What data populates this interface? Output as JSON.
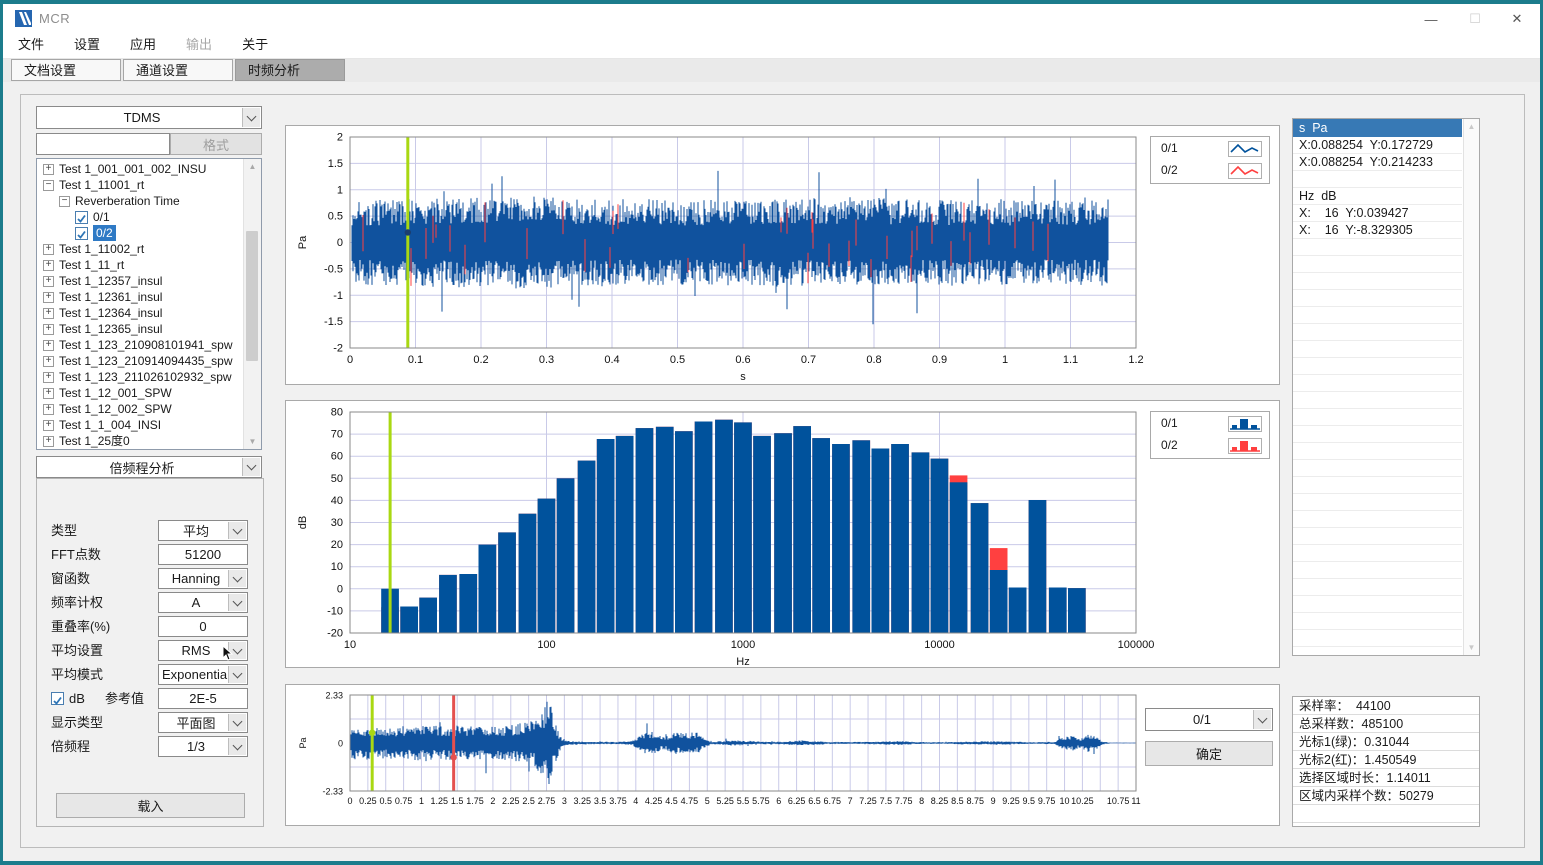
{
  "window": {
    "title": "MCR"
  },
  "menu": [
    {
      "label": "文件",
      "enabled": true
    },
    {
      "label": "设置",
      "enabled": true
    },
    {
      "label": "应用",
      "enabled": true
    },
    {
      "label": "输出",
      "enabled": false
    },
    {
      "label": "关于",
      "enabled": true
    }
  ],
  "tabs": [
    {
      "label": "文档设置",
      "active": false
    },
    {
      "label": "通道设置",
      "active": false
    },
    {
      "label": "时频分析",
      "active": true
    }
  ],
  "left": {
    "format_select": "TDMS",
    "search_value": "",
    "format_button": "格式",
    "tree": [
      {
        "label": "Test 1_001_001_002_INSU",
        "level": 0,
        "exp": "+"
      },
      {
        "label": "Test 1_11001_rt",
        "level": 0,
        "exp": "-"
      },
      {
        "label": "Reverberation Time",
        "level": 1,
        "exp": "-"
      },
      {
        "label": "0/1",
        "level": 2,
        "check": true
      },
      {
        "label": "0/2",
        "level": 2,
        "check": true,
        "selected": true
      },
      {
        "label": "Test 1_11002_rt",
        "level": 0,
        "exp": "+"
      },
      {
        "label": "Test 1_11_rt",
        "level": 0,
        "exp": "+"
      },
      {
        "label": "Test 1_12357_insul",
        "level": 0,
        "exp": "+"
      },
      {
        "label": "Test 1_12361_insul",
        "level": 0,
        "exp": "+"
      },
      {
        "label": "Test 1_12364_insul",
        "level": 0,
        "exp": "+"
      },
      {
        "label": "Test 1_12365_insul",
        "level": 0,
        "exp": "+"
      },
      {
        "label": "Test 1_123_210908101941_spw",
        "level": 0,
        "exp": "+"
      },
      {
        "label": "Test 1_123_210914094435_spw",
        "level": 0,
        "exp": "+"
      },
      {
        "label": "Test 1_123_211026102932_spw",
        "level": 0,
        "exp": "+"
      },
      {
        "label": "Test 1_12_001_SPW",
        "level": 0,
        "exp": "+"
      },
      {
        "label": "Test 1_12_002_SPW",
        "level": 0,
        "exp": "+"
      },
      {
        "label": "Test 1_1_004_INSI",
        "level": 0,
        "exp": "+"
      },
      {
        "label": "Test 1_25度0",
        "level": 0,
        "exp": "+"
      }
    ],
    "analysis_select": "倍频程分析",
    "fields": [
      {
        "label": "类型",
        "type": "select",
        "value": "平均"
      },
      {
        "label": "FFT点数",
        "type": "input",
        "value": "51200"
      },
      {
        "label": "窗函数",
        "type": "select",
        "value": "Hanning"
      },
      {
        "label": "频率计权",
        "type": "select",
        "value": "A"
      },
      {
        "label": "重叠率(%)",
        "type": "input",
        "value": "0"
      },
      {
        "label": "平均设置",
        "type": "select",
        "value": "RMS"
      },
      {
        "label": "平均模式",
        "type": "select",
        "value": "Exponential"
      },
      {
        "label": "dB",
        "type": "check-input",
        "checked": true,
        "label2": "参考值",
        "value": "2E-5"
      },
      {
        "label": "显示类型",
        "type": "select",
        "value": "平面图"
      },
      {
        "label": "倍频程",
        "type": "select",
        "value": "1/3"
      }
    ],
    "load_button": "载入"
  },
  "readout": {
    "rows": [
      "s  Pa",
      "X:0.088254  Y:0.172729",
      "X:0.088254  Y:0.214233",
      "",
      "Hz  dB",
      "X:    16  Y:0.039427",
      "X:    16  Y:-8.329305"
    ]
  },
  "stats": [
    "采样率：  44100",
    "总采样数：485100",
    "光标1(绿)：0.31044",
    "光标2(红)：1.450549",
    "选择区域时长：1.14011",
    "区域内采样个数：50279"
  ],
  "bottom_controls": {
    "channel_select": "0/1",
    "confirm_button": "确定"
  },
  "colors": {
    "series_blue": "#00529C",
    "series_red": "#FF4040",
    "cursor_green": "#A9D812",
    "cursor_red": "#E4504F",
    "grid": "#C9CAE8",
    "axis": "#8A8A8A",
    "selection_blue": "#3779B5",
    "frame_teal": "#1C7C8C"
  },
  "chart_data": [
    {
      "id": "time-waveform",
      "type": "line",
      "xlabel": "s",
      "ylabel": "Pa",
      "xlim": [
        0,
        1.2
      ],
      "ylim": [
        -2,
        2
      ],
      "xticks": {
        "values": [
          0,
          0.1,
          0.2,
          0.3,
          0.4,
          0.5,
          0.6,
          0.7,
          0.8,
          0.9,
          1,
          1.1,
          1.2
        ],
        "labels": [
          "0",
          "0.1",
          "0.2",
          "0.3",
          "0.4",
          "0.5",
          "0.6",
          "0.7",
          "0.8",
          "0.9",
          "1",
          "1.1",
          "1.2"
        ]
      },
      "yticks": {
        "values": [
          2,
          1.5,
          1,
          0.5,
          0,
          -0.5,
          -1,
          -1.5,
          -2
        ],
        "labels": [
          "2",
          "1.5",
          "1",
          "0.5",
          "0",
          "-0.5",
          "-1",
          "-1.5",
          "-2"
        ]
      },
      "legend": [
        {
          "name": "0/1",
          "color": "#00529C",
          "style": "line"
        },
        {
          "name": "0/2",
          "color": "#FF4040",
          "style": "line"
        }
      ],
      "cursors": [
        {
          "x": 0.088254,
          "color": "green",
          "dot_y": 0.19,
          "dot_color": "#1B3E6F"
        }
      ],
      "signal": {
        "start": 0.003,
        "end": 1.158,
        "seed": 7,
        "peak": 1.55,
        "red_slivers": 0.05,
        "envelope": [
          [
            0,
            0.8
          ],
          [
            0.25,
            0.88
          ],
          [
            0.5,
            0.8
          ],
          [
            0.75,
            0.86
          ],
          [
            1.0,
            0.8
          ],
          [
            1.158,
            0.82
          ]
        ]
      }
    },
    {
      "id": "octave-spectrum",
      "type": "bar",
      "xscale": "log",
      "xlabel": "Hz",
      "ylabel": "dB",
      "xlim": [
        10,
        100000
      ],
      "ylim": [
        -20,
        80
      ],
      "xticks": {
        "values": [
          10,
          100,
          1000,
          10000,
          100000
        ],
        "labels": [
          "10",
          "100",
          "1000",
          "10000",
          "100000"
        ]
      },
      "yticks": {
        "values": [
          80,
          70,
          60,
          50,
          40,
          30,
          20,
          10,
          0,
          -10,
          -20
        ],
        "labels": [
          "80",
          "70",
          "60",
          "50",
          "40",
          "30",
          "20",
          "10",
          "0",
          "-10",
          "-20"
        ]
      },
      "legend": [
        {
          "name": "0/1",
          "color": "#00529C",
          "style": "bar"
        },
        {
          "name": "0/2",
          "color": "#FF4040",
          "style": "bar"
        }
      ],
      "categories": [
        16,
        20,
        25,
        31.5,
        40,
        50,
        63,
        80,
        100,
        125,
        160,
        200,
        250,
        315,
        400,
        500,
        630,
        800,
        1000,
        1250,
        1600,
        2000,
        2500,
        3150,
        4000,
        5000,
        6300,
        8000,
        10000,
        12500,
        16000,
        20000,
        25000,
        31500,
        40000,
        50000
      ],
      "series": [
        {
          "name": "0/1",
          "color": "#00529C",
          "values": [
            0.04,
            -8,
            -4,
            6.3,
            6.7,
            20,
            25.5,
            34,
            40.8,
            50,
            58,
            67.8,
            69.2,
            72.7,
            73.3,
            71.3,
            75.7,
            76.5,
            75.3,
            69.2,
            70.4,
            73.6,
            68.2,
            65.5,
            67.2,
            63.5,
            65.5,
            61.7,
            58.9,
            48.2,
            38.8,
            8.5,
            0.6,
            40.2,
            0.6,
            0.3
          ]
        },
        {
          "name": "0/2",
          "color": "#FF4040",
          "values": [
            -8.33,
            -8,
            -4,
            6.3,
            6.7,
            20,
            25.5,
            34,
            40.8,
            50,
            58,
            67.8,
            69.2,
            72.7,
            73.3,
            71.3,
            75.7,
            76.5,
            75.3,
            69.2,
            70.4,
            73.6,
            68.2,
            65.5,
            67.2,
            63.5,
            65.5,
            61.7,
            58.9,
            51.3,
            38.8,
            18.4,
            0.6,
            40.2,
            0.6,
            0.3
          ]
        }
      ],
      "cursors": [
        {
          "x": 16,
          "color": "green"
        }
      ]
    },
    {
      "id": "overview-waveform",
      "type": "line",
      "xlabel": "",
      "ylabel": "Pa",
      "xlim": [
        0,
        11
      ],
      "ylim": [
        -2.33,
        2.33
      ],
      "xticks": {
        "values": [
          0,
          0.25,
          0.5,
          0.75,
          1,
          1.25,
          1.5,
          1.75,
          2,
          2.25,
          2.5,
          2.75,
          3,
          3.25,
          3.5,
          3.75,
          4,
          4.25,
          4.5,
          4.75,
          5,
          5.25,
          5.5,
          5.75,
          6,
          6.25,
          6.5,
          6.75,
          7,
          7.25,
          7.5,
          7.75,
          8,
          8.25,
          8.5,
          8.75,
          9,
          9.25,
          9.5,
          9.75,
          10,
          10.25,
          10.5,
          10.75,
          11
        ],
        "labels": [
          "0",
          "0.25",
          "0.5",
          "0.75",
          "1",
          "1.25",
          "1.5",
          "1.75",
          "2",
          "2.25",
          "2.5",
          "2.75",
          "3",
          "3.25",
          "3.5",
          "3.75",
          "4",
          "4.25",
          "4.5",
          "4.75",
          "5",
          "5.25",
          "5.5",
          "5.75",
          "6",
          "6.25",
          "6.5",
          "6.75",
          "7",
          "7.25",
          "7.5",
          "7.75",
          "8",
          "8.25",
          "8.5",
          "8.75",
          "9",
          "9.25",
          "9.5",
          "9.75",
          "10",
          "10.25",
          "",
          "10.75",
          "11"
        ]
      },
      "yticks": {
        "values": [
          2.33,
          0,
          -2.33
        ],
        "labels": [
          "2.33",
          "0",
          "-2.33"
        ]
      },
      "grid_y": [
        2.33,
        1.165,
        0,
        -1.165,
        -2.33
      ],
      "cursors": [
        {
          "x": 0.31044,
          "color": "green",
          "dot_y": 0.5,
          "dot_color": "#A9D812"
        },
        {
          "x": 1.450549,
          "color": "red",
          "dot_y": -0.7,
          "dot_color": "#E4504F"
        }
      ],
      "signal": {
        "start": 0.005,
        "end": 10.98,
        "seed": 12,
        "peak": 2.3,
        "red_slivers": 0,
        "envelope": [
          [
            0,
            0.85
          ],
          [
            0.5,
            0.8
          ],
          [
            1,
            0.85
          ],
          [
            1.5,
            0.82
          ],
          [
            2,
            0.86
          ],
          [
            2.3,
            0.9
          ],
          [
            2.55,
            1.1
          ],
          [
            2.7,
            1.6
          ],
          [
            2.78,
            2.25
          ],
          [
            2.86,
            1.1
          ],
          [
            2.95,
            0.3
          ],
          [
            3.05,
            0.1
          ],
          [
            3.4,
            0.06
          ],
          [
            3.8,
            0.06
          ],
          [
            3.95,
            0.12
          ],
          [
            4.1,
            0.5
          ],
          [
            4.25,
            0.55
          ],
          [
            4.4,
            0.3
          ],
          [
            4.55,
            0.55
          ],
          [
            4.7,
            0.5
          ],
          [
            4.85,
            0.55
          ],
          [
            4.95,
            0.25
          ],
          [
            5.05,
            0.07
          ],
          [
            5.2,
            0.1
          ],
          [
            5.35,
            0.14
          ],
          [
            5.55,
            0.1
          ],
          [
            5.8,
            0.06
          ],
          [
            6.05,
            0.07
          ],
          [
            6.25,
            0.12
          ],
          [
            6.45,
            0.1
          ],
          [
            6.7,
            0.06
          ],
          [
            7.0,
            0.05
          ],
          [
            7.3,
            0.06
          ],
          [
            7.55,
            0.09
          ],
          [
            7.75,
            0.09
          ],
          [
            8.0,
            0.05
          ],
          [
            8.3,
            0.04
          ],
          [
            8.65,
            0.08
          ],
          [
            8.95,
            0.09
          ],
          [
            9.25,
            0.07
          ],
          [
            9.55,
            0.04
          ],
          [
            9.85,
            0.06
          ],
          [
            9.98,
            0.3
          ],
          [
            10.12,
            0.38
          ],
          [
            10.22,
            0.25
          ],
          [
            10.32,
            0.42
          ],
          [
            10.45,
            0.35
          ],
          [
            10.52,
            0.08
          ],
          [
            10.65,
            0.02
          ],
          [
            11,
            0.02
          ]
        ]
      }
    }
  ]
}
